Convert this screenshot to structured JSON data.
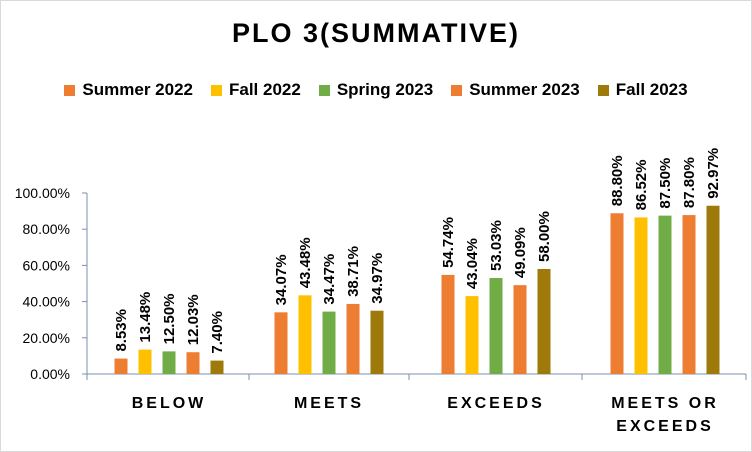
{
  "chart_data": {
    "type": "bar",
    "title": "PLO 3(SUMMATIVE)",
    "categories": [
      "BELOW",
      "MEETS",
      "EXCEEDS",
      "MEETS OR EXCEEDS"
    ],
    "series": [
      {
        "name": "Summer 2022",
        "color": "#ED7D31",
        "values": [
          8.53,
          34.07,
          54.74,
          88.8
        ],
        "labels": [
          "8.53%",
          "34.07%",
          "54.74%",
          "88.80%"
        ]
      },
      {
        "name": "Fall 2022",
        "color": "#FFC000",
        "values": [
          13.48,
          43.48,
          43.04,
          86.52
        ],
        "labels": [
          "13.48%",
          "43.48%",
          "43.04%",
          "86.52%"
        ]
      },
      {
        "name": "Spring 2023",
        "color": "#70AD47",
        "values": [
          12.5,
          34.47,
          53.03,
          87.5
        ],
        "labels": [
          "12.50%",
          "34.47%",
          "53.03%",
          "87.50%"
        ]
      },
      {
        "name": "Summer 2023",
        "color": "#ED7D31",
        "values": [
          12.03,
          38.71,
          49.09,
          87.8
        ],
        "labels": [
          "12.03%",
          "38.71%",
          "49.09%",
          "87.80%"
        ]
      },
      {
        "name": "Fall 2023",
        "color": "#9E7A0B",
        "values": [
          7.4,
          34.97,
          58.0,
          92.97
        ],
        "labels": [
          "7.40%",
          "34.97%",
          "58.00%",
          "92.97%"
        ]
      }
    ],
    "y_ticks": [
      "0.00%",
      "20.00%",
      "40.00%",
      "60.00%",
      "80.00%",
      "100.00%"
    ],
    "ylim": [
      0,
      100
    ],
    "grid": false,
    "legend_position": "top"
  }
}
